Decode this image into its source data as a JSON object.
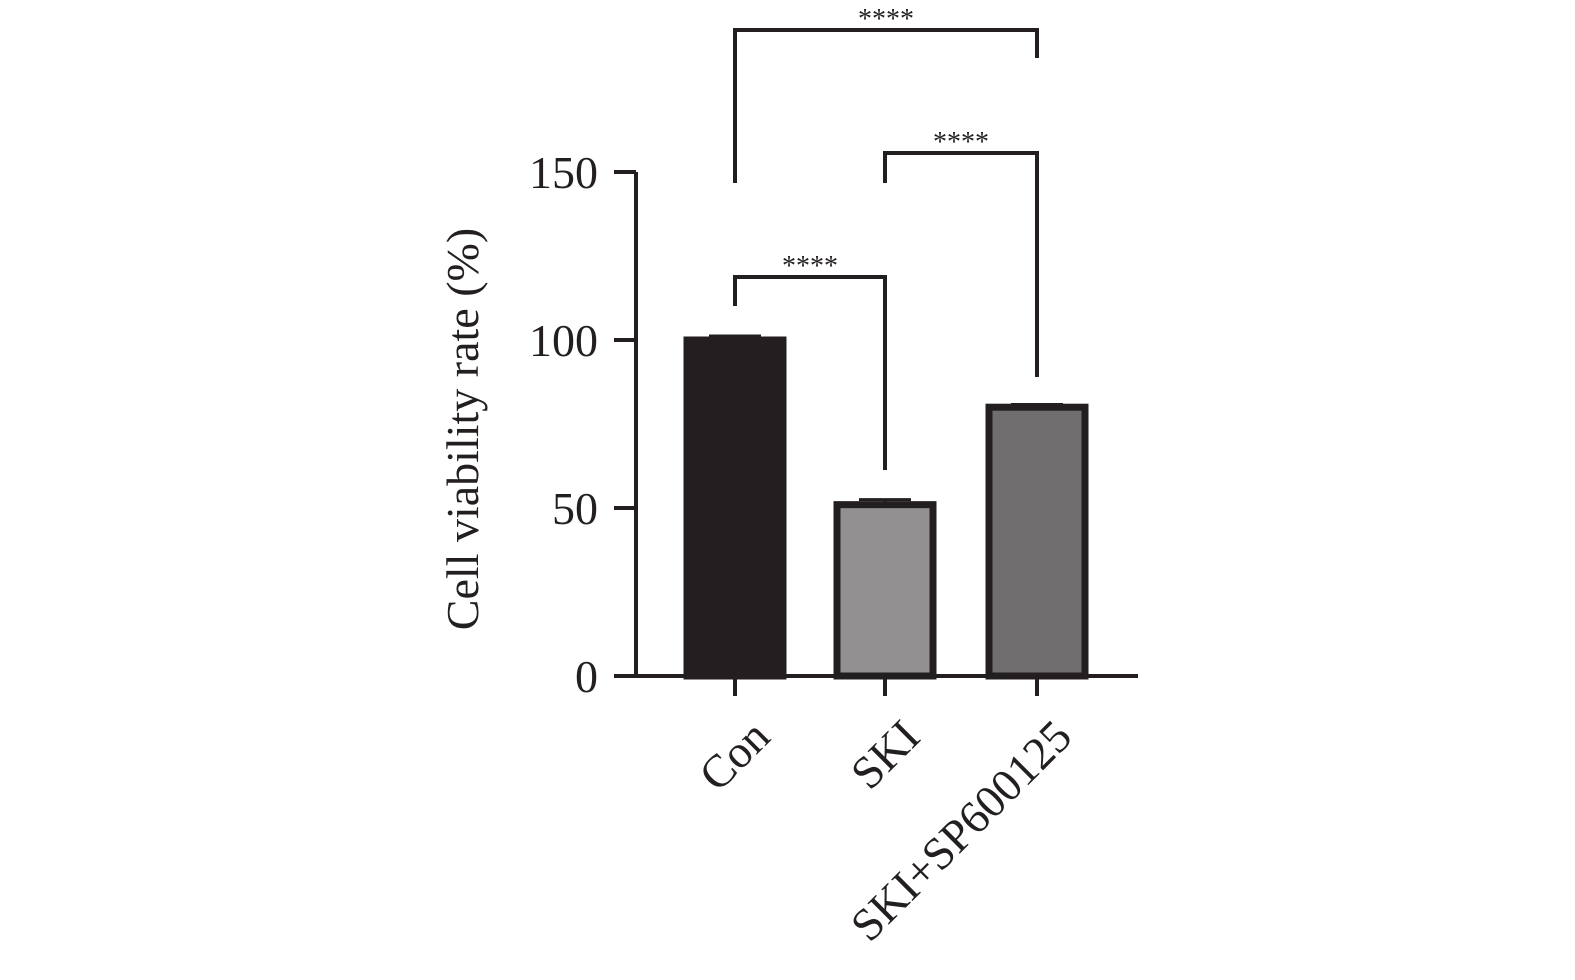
{
  "chart_data": {
    "type": "bar",
    "title": "",
    "xlabel": "",
    "ylabel": "Cell viability rate (%)",
    "ylim": [
      0,
      150
    ],
    "yticks": [
      0,
      50,
      100,
      150
    ],
    "grid": false,
    "categories": [
      "Con",
      "SKI",
      "SKI+SP600125"
    ],
    "values": [
      100,
      51,
      80
    ],
    "errors": [
      1.2,
      1.5,
      0.8
    ],
    "bar_colors": [
      "#231f20",
      "#929091",
      "#706e6f"
    ],
    "edge_color": "#231f20",
    "significance": [
      {
        "from": 0,
        "to": 1,
        "label": "****"
      },
      {
        "from": 1,
        "to": 2,
        "label": "****"
      },
      {
        "from": 0,
        "to": 2,
        "label": "****"
      }
    ]
  }
}
